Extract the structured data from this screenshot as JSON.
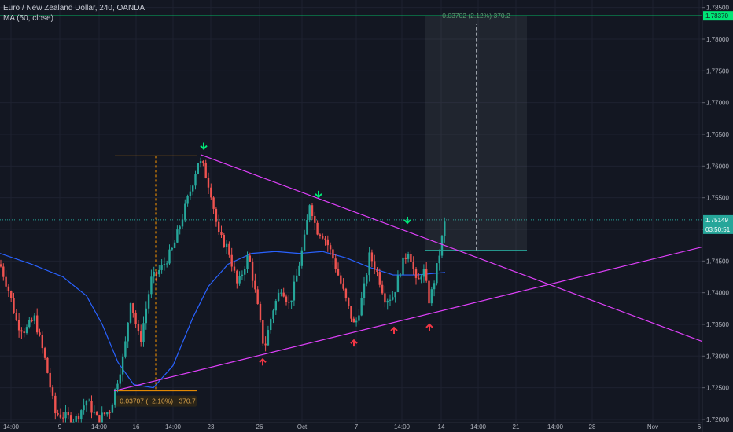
{
  "header": {
    "symbol_line": "Euro / New Zealand Dollar, 240, OANDA",
    "indicator_line": "MA (50, close)"
  },
  "colors": {
    "background": "#131722",
    "up": "#26a69a",
    "down": "#ef5350",
    "ma": "#2962ff",
    "trendline": "#e040fb",
    "target": "#00e676",
    "measure": "#ff9800",
    "signal_down": "#00e676",
    "signal_up": "#f23645",
    "current_price": "#26a69a"
  },
  "chart_data": {
    "type": "candlestick",
    "title": "Euro / New Zealand Dollar, 240, OANDA",
    "ylim": [
      1.7195,
      1.7862
    ],
    "y_ticks": [
      "1.78500",
      "1.78000",
      "1.77500",
      "1.77000",
      "1.76500",
      "1.76000",
      "1.75500",
      "1.75000",
      "1.74500",
      "1.74000",
      "1.73500",
      "1.73000",
      "1.72500",
      "1.72000"
    ],
    "x_ticks": [
      "14:00",
      "9",
      "14:00",
      "16",
      "14:00",
      "23",
      "26",
      "Oct",
      "7",
      "14:00",
      "14",
      "14:00",
      "21",
      "14:00",
      "28",
      "Nov",
      "6"
    ],
    "price_path": [
      [
        0,
        1.7445
      ],
      [
        12,
        1.74
      ],
      [
        22,
        1.735
      ],
      [
        32,
        1.734
      ],
      [
        44,
        1.736
      ],
      [
        58,
        1.729
      ],
      [
        70,
        1.721
      ],
      [
        82,
        1.7205
      ],
      [
        96,
        1.72
      ],
      [
        110,
        1.723
      ],
      [
        124,
        1.72
      ],
      [
        140,
        1.7215
      ],
      [
        146,
        1.7245
      ],
      [
        158,
        1.7305
      ],
      [
        166,
        1.739
      ],
      [
        178,
        1.732
      ],
      [
        192,
        1.742
      ],
      [
        206,
        1.744
      ],
      [
        220,
        1.747
      ],
      [
        232,
        1.752
      ],
      [
        244,
        1.757
      ],
      [
        252,
        1.7608
      ],
      [
        258,
        1.76
      ],
      [
        268,
        1.756
      ],
      [
        278,
        1.749
      ],
      [
        290,
        1.747
      ],
      [
        302,
        1.741
      ],
      [
        316,
        1.746
      ],
      [
        326,
        1.739
      ],
      [
        336,
        1.731
      ],
      [
        346,
        1.737
      ],
      [
        358,
        1.741
      ],
      [
        368,
        1.738
      ],
      [
        378,
        1.743
      ],
      [
        388,
        1.749
      ],
      [
        394,
        1.7545
      ],
      [
        402,
        1.75
      ],
      [
        412,
        1.749
      ],
      [
        422,
        1.746
      ],
      [
        432,
        1.742
      ],
      [
        442,
        1.738
      ],
      [
        451,
        1.7345
      ],
      [
        462,
        1.74
      ],
      [
        470,
        1.746
      ],
      [
        480,
        1.743
      ],
      [
        490,
        1.739
      ],
      [
        500,
        1.7395
      ],
      [
        510,
        1.744
      ],
      [
        520,
        1.747
      ],
      [
        530,
        1.741
      ],
      [
        538,
        1.744
      ],
      [
        546,
        1.7385
      ],
      [
        554,
        1.743
      ],
      [
        560,
        1.747
      ],
      [
        566,
        1.7514
      ]
    ],
    "series": [
      {
        "name": "MA (50, close)",
        "points": [
          [
            0,
            1.7462
          ],
          [
            40,
            1.7445
          ],
          [
            80,
            1.7425
          ],
          [
            110,
            1.7395
          ],
          [
            130,
            1.735
          ],
          [
            150,
            1.729
          ],
          [
            170,
            1.7255
          ],
          [
            195,
            1.725
          ],
          [
            220,
            1.7285
          ],
          [
            245,
            1.736
          ],
          [
            265,
            1.741
          ],
          [
            290,
            1.7445
          ],
          [
            320,
            1.7462
          ],
          [
            350,
            1.7465
          ],
          [
            380,
            1.7462
          ],
          [
            410,
            1.7465
          ],
          [
            440,
            1.7455
          ],
          [
            470,
            1.744
          ],
          [
            500,
            1.7428
          ],
          [
            530,
            1.7428
          ],
          [
            566,
            1.7432
          ]
        ]
      }
    ],
    "trendlines": [
      {
        "name": "resistance",
        "from": [
          255,
          1.7618
        ],
        "to": [
          932,
          1.7305
        ]
      },
      {
        "name": "support",
        "from": [
          145,
          1.7245
        ],
        "to": [
          932,
          1.7484
        ]
      }
    ],
    "target_line": {
      "value": 1.7837,
      "label": "1.78370"
    },
    "current_price": {
      "value": 1.7515,
      "label": "1.75149",
      "countdown": "03:50:51"
    },
    "measure_down": {
      "from": [
        146,
        1.7616
      ],
      "to": [
        250,
        1.7245
      ],
      "label": "−0.03707 (−2.10%) −370.7"
    },
    "projection": {
      "from": [
        541,
        1.7467
      ],
      "to": [
        670,
        1.7837
      ],
      "label": "0.03702 (2.12%) 370.2"
    },
    "down_arrows": [
      [
        259,
        1.7627
      ],
      [
        405,
        1.7551
      ],
      [
        518,
        1.751
      ]
    ],
    "up_arrows": [
      [
        334,
        1.7295
      ],
      [
        450,
        1.7325
      ],
      [
        501,
        1.7345
      ],
      [
        546,
        1.735
      ]
    ]
  }
}
